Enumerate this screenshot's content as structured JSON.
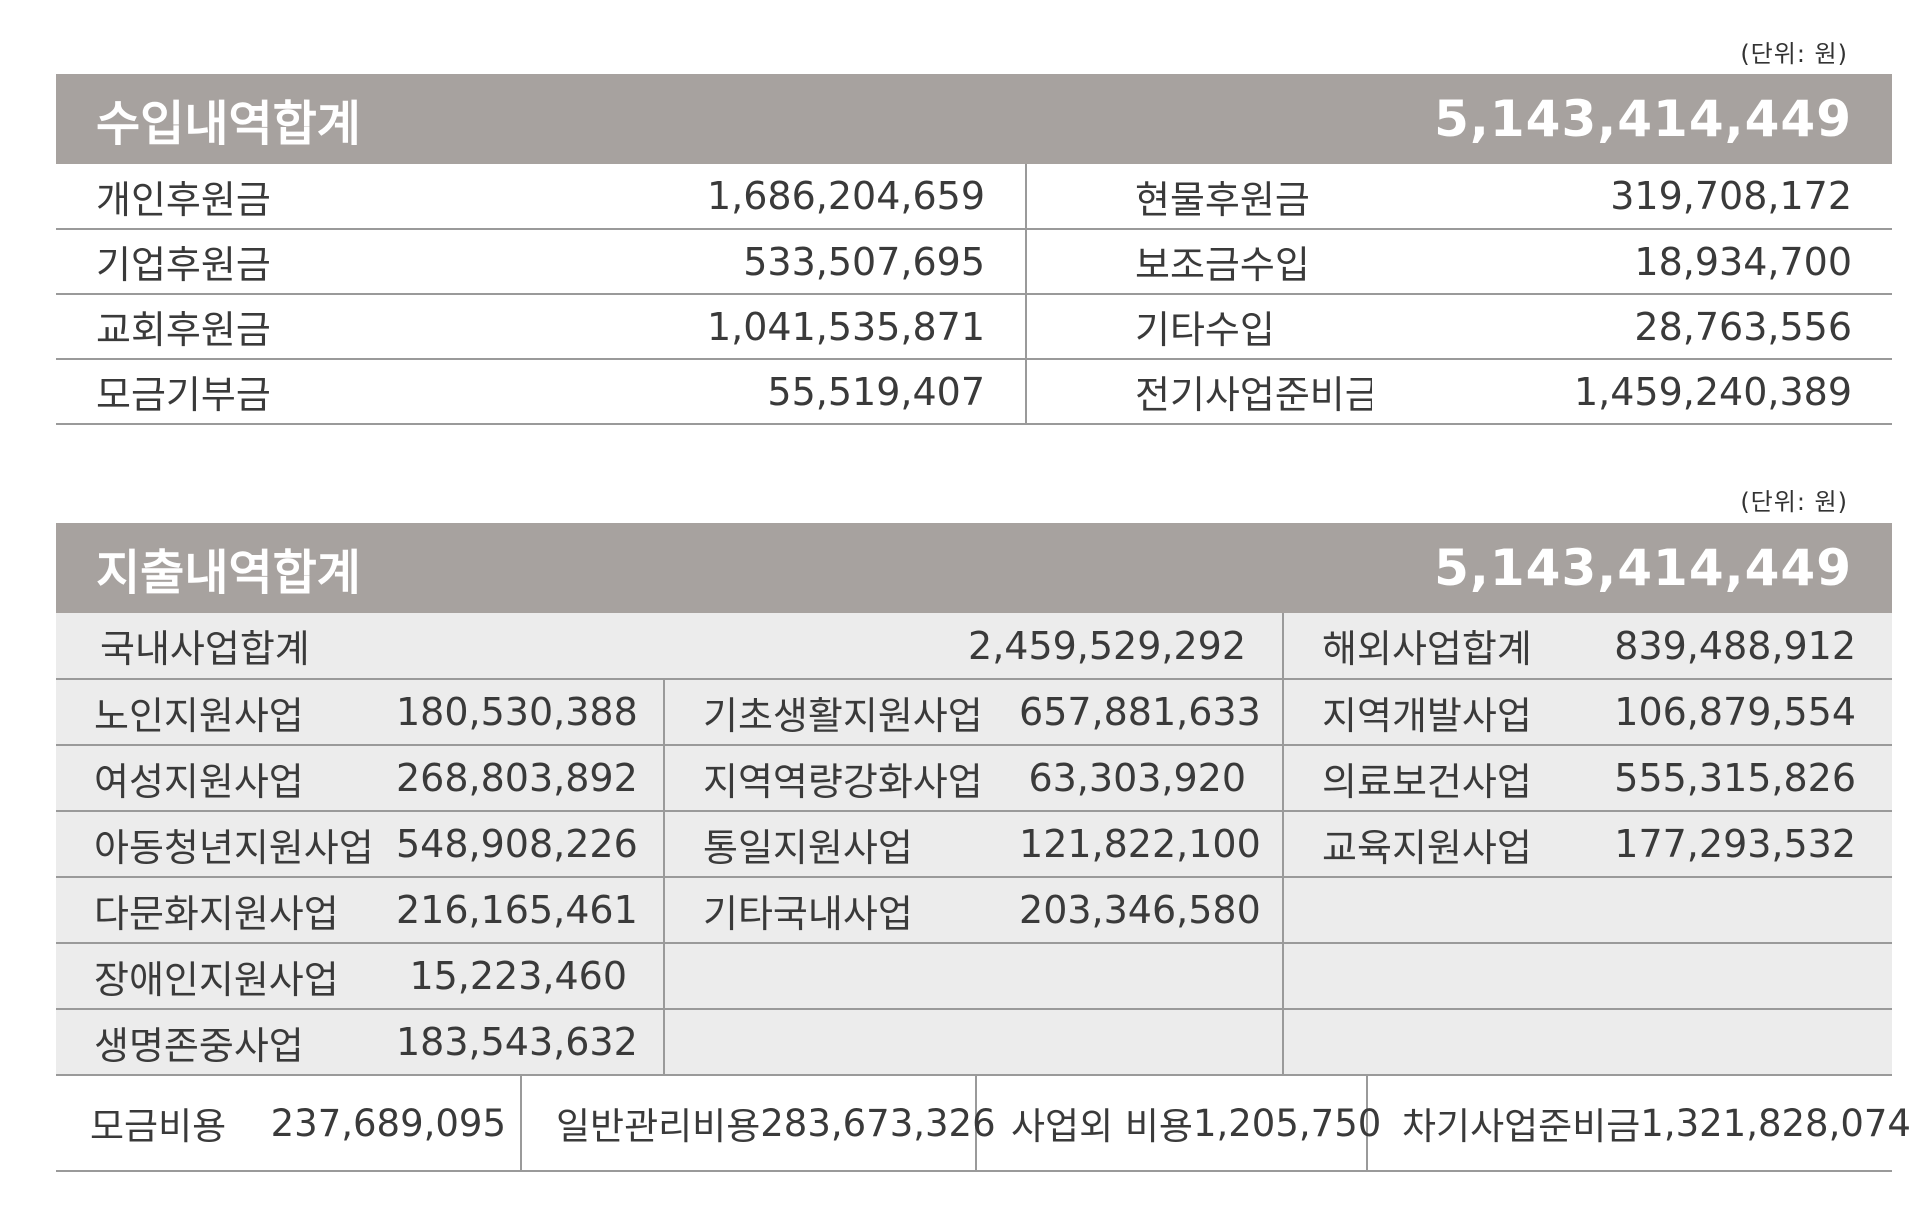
{
  "income": {
    "unit": "(단위: 원)",
    "title": "수입내역합계",
    "total": "5,143,414,449",
    "rows": [
      {
        "l1": "개인후원금",
        "v1": "1,686,204,659",
        "l2": "현물후원금",
        "v2": "319,708,172"
      },
      {
        "l1": "기업후원금",
        "v1": "533,507,695",
        "l2": "보조금수입",
        "v2": "18,934,700"
      },
      {
        "l1": "교회후원금",
        "v1": "1,041,535,871",
        "l2": "기타수입",
        "v2": "28,763,556"
      },
      {
        "l1": "모금기부금",
        "v1": "55,519,407",
        "l2": "전기사업준비금",
        "v2": "1,459,240,389"
      }
    ]
  },
  "expense": {
    "unit": "(단위: 원)",
    "title": "지출내역합계",
    "total": "5,143,414,449",
    "domestic_label": "국내사업합계",
    "domestic_total": "2,459,529,292",
    "overseas_label": "해외사업합계",
    "overseas_total": "839,488,912",
    "rows": [
      {
        "l1": "노인지원사업",
        "v1": "180,530,388",
        "l2": "기초생활지원사업",
        "v2": "657,881,633",
        "l3": "지역개발사업",
        "v3": "106,879,554"
      },
      {
        "l1": "여성지원사업",
        "v1": "268,803,892",
        "l2": "지역역량강화사업",
        "v2": "63,303,920",
        "l3": "의료보건사업",
        "v3": "555,315,826"
      },
      {
        "l1": "아동청년지원사업",
        "v1": "548,908,226",
        "l2": "통일지원사업",
        "v2": "121,822,100",
        "l3": "교육지원사업",
        "v3": "177,293,532"
      },
      {
        "l1": "다문화지원사업",
        "v1": "216,165,461",
        "l2": "기타국내사업",
        "v2": "203,346,580",
        "l3": "",
        "v3": ""
      },
      {
        "l1": "장애인지원사업",
        "v1": "15,223,460",
        "l2": "",
        "v2": "",
        "l3": "",
        "v3": ""
      },
      {
        "l1": "생명존중사업",
        "v1": "183,543,632",
        "l2": "",
        "v2": "",
        "l3": "",
        "v3": ""
      }
    ],
    "bottom": [
      {
        "label": "모금비용",
        "value": "237,689,095"
      },
      {
        "label": "일반관리비용",
        "value": "283,673,326"
      },
      {
        "label": "사업외 비용",
        "value": "1,205,750"
      },
      {
        "label": "차기사업준비금",
        "value": "1,321,828,074"
      }
    ]
  }
}
